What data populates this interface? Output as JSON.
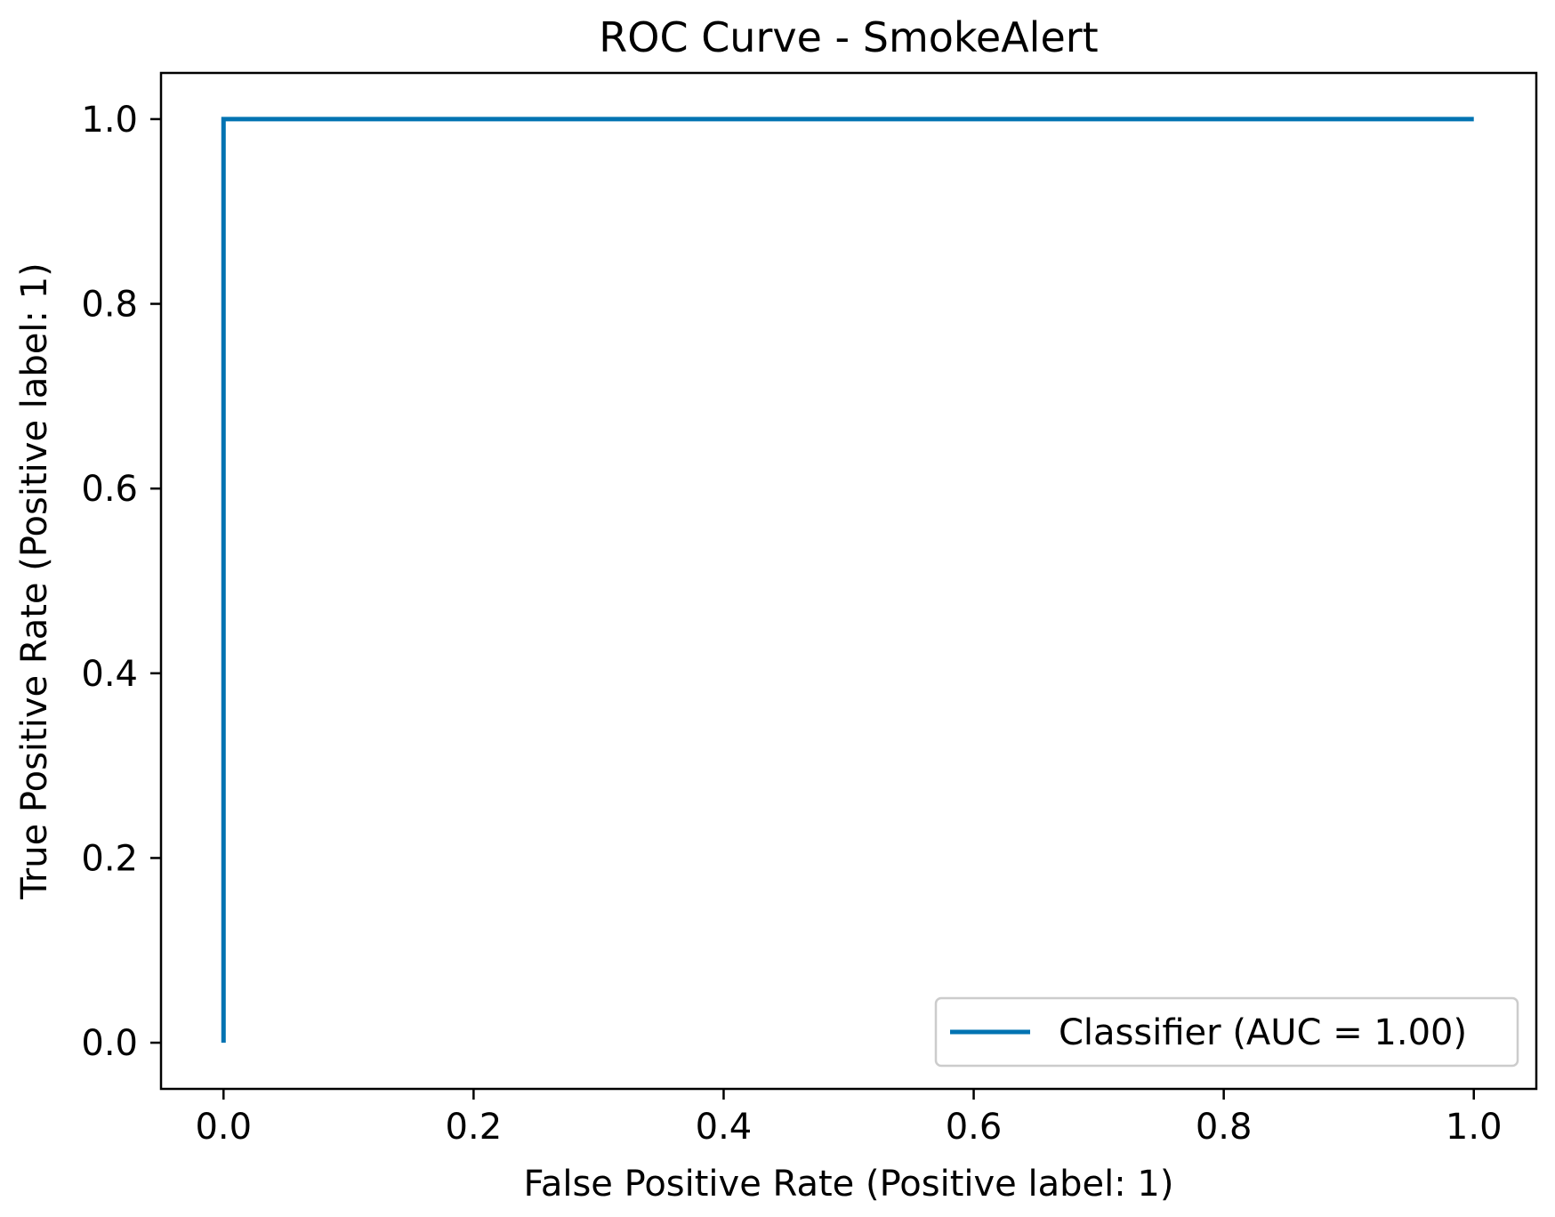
{
  "chart_data": {
    "type": "line",
    "title": "ROC Curve - SmokeAlert",
    "xlabel": "False Positive Rate (Positive label: 1)",
    "ylabel": "True Positive Rate (Positive label: 1)",
    "xlim": [
      -0.05,
      1.05
    ],
    "ylim": [
      -0.05,
      1.05
    ],
    "x_ticks": [
      0.0,
      0.2,
      0.4,
      0.6,
      0.8,
      1.0
    ],
    "y_ticks": [
      0.0,
      0.2,
      0.4,
      0.6,
      0.8,
      1.0
    ],
    "x_tick_labels": [
      "0.0",
      "0.2",
      "0.4",
      "0.6",
      "0.8",
      "1.0"
    ],
    "y_tick_labels": [
      "0.0",
      "0.2",
      "0.4",
      "0.6",
      "0.8",
      "1.0"
    ],
    "grid": false,
    "legend_position": "bottom-right",
    "series": [
      {
        "name": "Classifier (AUC = 1.00)",
        "color": "#0173b2",
        "x": [
          0.0,
          0.0,
          1.0
        ],
        "y": [
          0.0,
          1.0,
          1.0
        ]
      }
    ]
  }
}
